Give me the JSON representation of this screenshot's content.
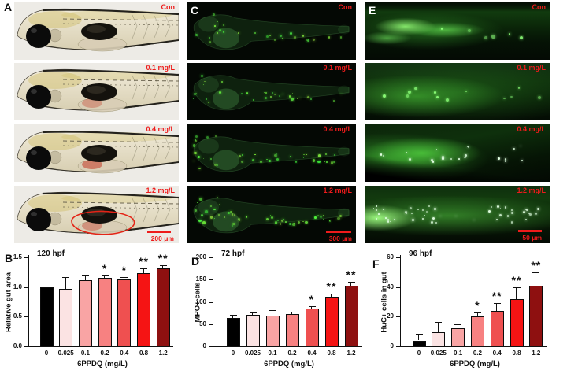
{
  "panels": {
    "A": {
      "label": "A",
      "scale_bar": "200 μm"
    },
    "B": {
      "label": "B"
    },
    "C": {
      "label": "C",
      "scale_bar": "300 μm"
    },
    "D": {
      "label": "D"
    },
    "E": {
      "label": "E",
      "scale_bar": "50 μm"
    },
    "F": {
      "label": "F"
    }
  },
  "micro_labels": [
    "Con",
    "0.1 mg/L",
    "0.4 mg/L",
    "1.2 mg/L"
  ],
  "colors": {
    "annotation_red": "#ee1b1b",
    "axis_black": "#111111",
    "bar_fill": [
      "#000000",
      "#fbe3e3",
      "#f9a4a4",
      "#f78181",
      "#ef5050",
      "#f51414",
      "#8e1010"
    ]
  },
  "chart_data": [
    {
      "panel": "B",
      "type": "bar",
      "title": "120 hpf",
      "ylabel": "Relative gut area",
      "xlabel": "6PPDQ (mg/L)",
      "categories": [
        "0",
        "0.025",
        "0.1",
        "0.2",
        "0.4",
        "0.8",
        "1.2"
      ],
      "values": [
        1.0,
        0.97,
        1.11,
        1.15,
        1.13,
        1.24,
        1.32
      ],
      "errors": [
        0.07,
        0.2,
        0.08,
        0.04,
        0.04,
        0.07,
        0.05
      ],
      "sig": [
        "",
        "",
        "",
        "*",
        "*",
        "**",
        "**"
      ],
      "ylim": [
        0,
        1.5
      ],
      "yticks": [
        0,
        0.5,
        1.0,
        1.5
      ],
      "ytick_labels": [
        "0.0",
        "0.5",
        "1.0",
        "1.5"
      ],
      "legend": "none",
      "grid": false
    },
    {
      "panel": "D",
      "type": "bar",
      "title": "72 hpf",
      "ylabel": "MPO+ cells",
      "xlabel": "6PPDQ (mg/L)",
      "categories": [
        "0",
        "0.025",
        "0.1",
        "0.2",
        "0.4",
        "0.8",
        "1.2"
      ],
      "values": [
        63,
        71,
        70,
        73,
        85,
        111,
        137
      ],
      "errors": [
        8,
        6,
        11,
        5,
        6,
        8,
        9
      ],
      "sig": [
        "",
        "",
        "",
        "",
        "*",
        "**",
        "**"
      ],
      "ylim": [
        0,
        200
      ],
      "yticks": [
        0,
        50,
        100,
        150,
        200
      ],
      "ytick_labels": [
        "0",
        "50",
        "100",
        "150",
        "200"
      ],
      "legend": "none",
      "grid": false
    },
    {
      "panel": "F",
      "type": "bar",
      "title": "96 hpf",
      "ylabel": "HuC+ cells in gut",
      "xlabel": "6PPDQ (mg/L)",
      "categories": [
        "0",
        "0.025",
        "0.1",
        "0.2",
        "0.4",
        "0.8",
        "1.2"
      ],
      "values": [
        4,
        9.5,
        12,
        20,
        24,
        32,
        41
      ],
      "errors": [
        4,
        7,
        3,
        3,
        5,
        8,
        9
      ],
      "sig": [
        "",
        "",
        "",
        "*",
        "**",
        "**",
        "**"
      ],
      "ylim": [
        0,
        60
      ],
      "yticks": [
        0,
        20,
        40,
        60
      ],
      "ytick_labels": [
        "0",
        "20",
        "40",
        "60"
      ],
      "legend": "none",
      "grid": false
    }
  ]
}
